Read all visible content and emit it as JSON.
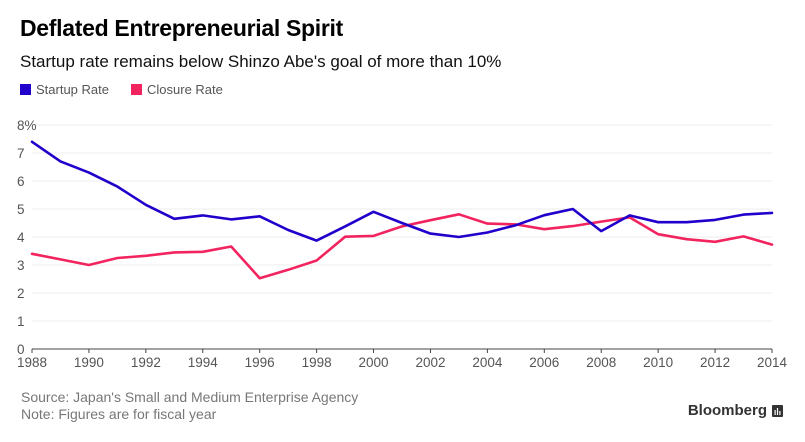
{
  "title": "Deflated Entrepreneurial Spirit",
  "subtitle": "Startup rate remains below Shinzo Abe's goal of more than 10%",
  "footer": {
    "source": "Source: Japan's Small and Medium Enterprise Agency",
    "note": "Note: Figures are for fiscal year",
    "brand": "Bloomberg",
    "brand_icon": "bloomberg-chart-icon"
  },
  "chart_data": {
    "type": "line",
    "title": "Deflated Entrepreneurial Spirit",
    "subtitle": "Startup rate remains below Shinzo Abe's goal of more than 10%",
    "xlabel": "",
    "ylabel": "",
    "x": [
      1988,
      1989,
      1990,
      1991,
      1992,
      1993,
      1994,
      1995,
      1996,
      1997,
      1998,
      1999,
      2000,
      2001,
      2002,
      2003,
      2004,
      2005,
      2006,
      2007,
      2008,
      2009,
      2010,
      2011,
      2012,
      2013,
      2014
    ],
    "xlim": [
      1988,
      2014
    ],
    "xticks": [
      "1988",
      "1990",
      "1992",
      "1994",
      "1996",
      "1998",
      "2000",
      "2002",
      "2004",
      "2006",
      "2008",
      "2010",
      "2012",
      "2014"
    ],
    "ylim": [
      0,
      8
    ],
    "yticks": [
      "0",
      "1",
      "2",
      "3",
      "4",
      "5",
      "6",
      "7",
      "8%"
    ],
    "grid": true,
    "legend_position": "top-left",
    "series": [
      {
        "name": "Startup Rate",
        "color": "#2200CC",
        "values": [
          7.4,
          6.7,
          6.3,
          5.8,
          5.15,
          4.65,
          4.77,
          4.63,
          4.74,
          4.25,
          3.87,
          4.38,
          4.9,
          4.5,
          4.12,
          4.0,
          4.16,
          4.42,
          4.78,
          5.0,
          4.21,
          4.77,
          4.53,
          4.53,
          4.61,
          4.8,
          4.86
        ]
      },
      {
        "name": "Closure Rate",
        "color": "#F2245F",
        "values": [
          3.4,
          3.2,
          3.0,
          3.25,
          3.33,
          3.45,
          3.47,
          3.66,
          2.53,
          2.83,
          3.16,
          4.01,
          4.04,
          4.38,
          4.6,
          4.81,
          4.48,
          4.45,
          4.28,
          4.39,
          4.55,
          4.7,
          4.1,
          3.92,
          3.83,
          4.02,
          3.73
        ]
      }
    ]
  }
}
